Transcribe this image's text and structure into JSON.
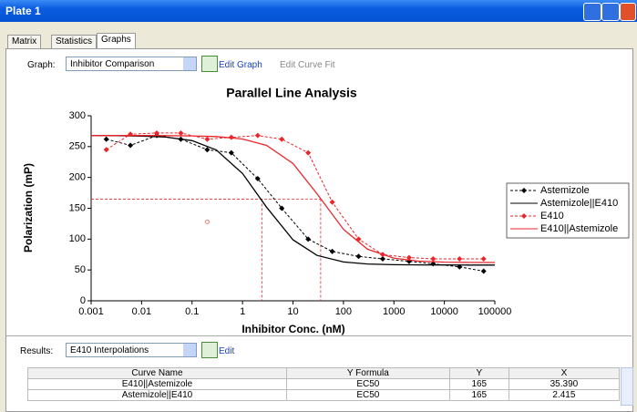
{
  "window": {
    "title": "Plate 1"
  },
  "tabs": [
    "Matrix",
    "Statistics",
    "Graphs"
  ],
  "graph_toolbar": {
    "label": "Graph:",
    "select": "Inhibitor Comparison",
    "edit_graph": "Edit Graph",
    "edit_curve_fit": "Edit Curve Fit"
  },
  "chart_data": {
    "type": "line",
    "title": "Parallel Line Analysis",
    "x_label": "Inhibitor Conc. (nM)",
    "y_label": "Polarization (mP)",
    "x_scale": "log",
    "xlim": [
      0.001,
      100000
    ],
    "xticks": [
      0.001,
      0.01,
      0.1,
      1,
      10,
      100,
      1000,
      10000,
      100000
    ],
    "ylim": [
      0,
      300
    ],
    "yticks": [
      0,
      50,
      100,
      150,
      200,
      250,
      300
    ],
    "grid": false,
    "legend": "right",
    "series": [
      {
        "name": "Astemizole",
        "color": "#000000",
        "dash": true,
        "marker": "diamond",
        "x": [
          0.002,
          0.006,
          0.02,
          0.06,
          0.2,
          0.6,
          2,
          6,
          20,
          60,
          200,
          600,
          2000,
          6000,
          20000,
          60000
        ],
        "values": [
          262,
          252,
          268,
          262,
          245,
          240,
          198,
          150,
          100,
          80,
          72,
          68,
          64,
          60,
          55,
          48
        ]
      },
      {
        "name": "Astemizole||E410",
        "color": "#000000",
        "dash": false,
        "marker": null,
        "x": [
          0.001,
          0.003,
          0.01,
          0.03,
          0.1,
          0.3,
          1,
          3,
          10,
          30,
          100,
          300,
          1000,
          3000,
          10000,
          30000,
          100000
        ],
        "values": [
          268,
          267.7,
          267.1,
          265.4,
          259.6,
          244.8,
          206.5,
          151.7,
          98.9,
          73.6,
          63,
          59.7,
          58.5,
          58.2,
          58.1,
          58,
          58
        ]
      },
      {
        "name": "E410",
        "color": "#e8262b",
        "dash": true,
        "marker": "diamond",
        "x": [
          0.002,
          0.006,
          0.02,
          0.06,
          0.2,
          0.6,
          2,
          6,
          20,
          60,
          200,
          600,
          2000,
          6000,
          20000,
          60000
        ],
        "values": [
          245,
          270,
          272,
          272,
          262,
          265,
          268,
          262,
          240,
          160,
          100,
          75,
          70,
          68,
          68,
          68
        ]
      },
      {
        "name": "E410||Astemizole",
        "color": "#e8262b",
        "dash": false,
        "marker": null,
        "x": [
          0.001,
          0.003,
          0.01,
          0.03,
          0.1,
          0.3,
          1,
          3,
          10,
          30,
          100,
          300,
          1000,
          3000,
          10000,
          30000,
          100000
        ],
        "values": [
          268,
          268,
          267.9,
          267.8,
          267.4,
          266.3,
          262.3,
          251.9,
          222.6,
          173.5,
          115.8,
          83.7,
          69,
          64.4,
          62.7,
          62.2,
          62.1
        ]
      }
    ],
    "outliers": {
      "color": "#f08080",
      "x": [
        0.2
      ],
      "values": [
        128
      ]
    }
  },
  "results": {
    "label": "Results:",
    "select": "E410 Interpolations",
    "edit": "Edit",
    "table": {
      "columns": [
        "Curve Name",
        "Y Formula",
        "Y",
        "X"
      ],
      "rows": [
        [
          "E410||Astemizole",
          "EC50",
          "165",
          "35.390"
        ],
        [
          "Astemizole||E410",
          "EC50",
          "165",
          "2.415"
        ]
      ]
    }
  }
}
